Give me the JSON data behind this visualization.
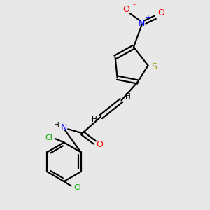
{
  "bg_color": "#e8e8e8",
  "bond_color": "#000000",
  "sulfur_color": "#999900",
  "nitrogen_color": "#0000ff",
  "oxygen_color": "#ff0000",
  "chlorine_color": "#00aa00",
  "carbon_color": "#000000",
  "figsize": [
    3.0,
    3.0
  ],
  "dpi": 100,
  "xlim": [
    0,
    10
  ],
  "ylim": [
    0,
    10
  ]
}
